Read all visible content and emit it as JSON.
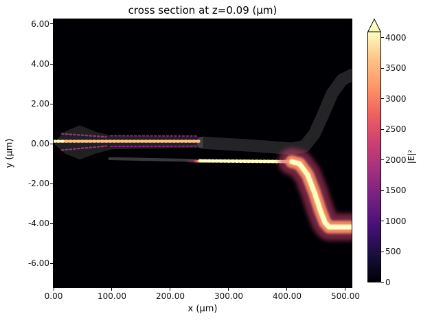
{
  "chart_data": {
    "type": "heatmap",
    "title": "cross section at z=0.09 (μm)",
    "xlabel": "x (μm)",
    "ylabel": "y (μm)",
    "xlim": [
      0,
      510.6
    ],
    "ylim": [
      -7.2,
      6.24
    ],
    "x_ticks": [
      0,
      100,
      200,
      300,
      400,
      500
    ],
    "x_tick_labels": [
      "0.00",
      "100.00",
      "200.00",
      "300.00",
      "400.00",
      "500.00"
    ],
    "y_ticks": [
      6,
      4,
      2,
      0,
      -2,
      -4,
      -6
    ],
    "y_tick_labels": [
      "6.00",
      "4.00",
      "2.00",
      "0.00",
      "-2.00",
      "-4.00",
      "-6.00"
    ],
    "background": "#000004",
    "colormap": "magma",
    "colorbar": {
      "label": "|E|²",
      "vmin": 0,
      "vmax": 4100,
      "extend": "max",
      "extend_color": "#fcfdbf",
      "ticks": [
        0,
        500,
        1000,
        1500,
        2000,
        2500,
        3000,
        3500,
        4000
      ],
      "tick_labels": [
        "0",
        "500",
        "1000",
        "1500",
        "2000",
        "2500",
        "3000",
        "3500",
        "4000"
      ],
      "stops": [
        {
          "pos": 0,
          "color": "#000004"
        },
        {
          "pos": 11,
          "color": "#180f3e"
        },
        {
          "pos": 22,
          "color": "#451077"
        },
        {
          "pos": 33,
          "color": "#721f81"
        },
        {
          "pos": 44,
          "color": "#9f2f7f"
        },
        {
          "pos": 56,
          "color": "#cd4071"
        },
        {
          "pos": 67,
          "color": "#f1605d"
        },
        {
          "pos": 78,
          "color": "#fd9567"
        },
        {
          "pos": 89,
          "color": "#fec287"
        },
        {
          "pos": 100,
          "color": "#fcfdbf"
        }
      ]
    },
    "structure": {
      "polygons": [
        {
          "name": "input-taper-outline",
          "alpha": 0.13,
          "points": [
            [
              2,
              0.12
            ],
            [
              20,
              0.62
            ],
            [
              45,
              0.92
            ],
            [
              72,
              0.6
            ],
            [
              100,
              0.4
            ],
            [
              256,
              0.34
            ],
            [
              256,
              -0.2
            ],
            [
              100,
              -0.28
            ],
            [
              72,
              -0.5
            ],
            [
              45,
              -0.8
            ],
            [
              20,
              -0.5
            ],
            [
              2,
              -0.05
            ]
          ]
        }
      ],
      "ribbons": [
        {
          "name": "upper-waveguide",
          "width_um": 0.62,
          "alpha": 0.14,
          "points": [
            [
              256,
              0.05
            ],
            [
              340,
              -0.1
            ],
            [
              408,
              -0.25
            ],
            [
              430,
              -0.12
            ],
            [
              447,
              0.5
            ],
            [
              461,
              1.4
            ],
            [
              477,
              2.5
            ],
            [
              494,
              3.2
            ],
            [
              511,
              3.45
            ]
          ]
        },
        {
          "name": "lower-waveguide",
          "width_um": 0.15,
          "alpha": 0.22,
          "points": [
            [
              96,
              -0.75
            ],
            [
              256,
              -0.85
            ]
          ]
        }
      ]
    },
    "field_traces": [
      {
        "name": "input-guide-field",
        "intensity": 2200,
        "width_um": 0.3,
        "points": [
          [
            0,
            0.12
          ],
          [
            250,
            0.12
          ]
        ],
        "glow": "#721f81",
        "glow_opacity": 0.55,
        "mid": "#cd4071",
        "core": "#f1605d",
        "dash": "#fec287"
      },
      {
        "name": "input-hotspot",
        "intensity": 3000,
        "width_um": 0.26,
        "points": [
          [
            0,
            0.12
          ],
          [
            16,
            0.12
          ]
        ],
        "core": "#fec287",
        "dash": "#fcfdbf"
      },
      {
        "name": "taper-fan-upper",
        "intensity": 1200,
        "width_um": 0.16,
        "points": [
          [
            14,
            0.5
          ],
          [
            90,
            0.34
          ]
        ],
        "dash": "#9f2f7f"
      },
      {
        "name": "taper-fan-lower",
        "intensity": 1200,
        "width_um": 0.16,
        "points": [
          [
            14,
            -0.32
          ],
          [
            90,
            -0.12
          ]
        ],
        "dash": "#9f2f7f"
      },
      {
        "name": "mode-beat-upper",
        "intensity": 900,
        "width_um": 0.13,
        "points": [
          [
            98,
            0.4
          ],
          [
            248,
            0.38
          ]
        ],
        "dash": "#8c2981"
      },
      {
        "name": "mode-beat-lower",
        "intensity": 900,
        "width_um": 0.13,
        "points": [
          [
            98,
            -0.14
          ],
          [
            248,
            -0.12
          ]
        ],
        "dash": "#8c2981"
      },
      {
        "name": "coupled-lower-guide-field",
        "intensity": 3300,
        "width_um": 0.34,
        "points": [
          [
            251,
            -0.86
          ],
          [
            408,
            -0.9
          ]
        ],
        "glow": "#9f2f7f",
        "glow_opacity": 0.5,
        "mid": "#f1605d",
        "core": "#fec287",
        "dash": "#fcfdbf"
      },
      {
        "name": "s-bend-output-field",
        "intensity": 4000,
        "width_um": 0.4,
        "points": [
          [
            408,
            -0.9
          ],
          [
            421,
            -1.0
          ],
          [
            435,
            -1.55
          ],
          [
            447,
            -2.45
          ],
          [
            457,
            -3.35
          ],
          [
            465,
            -3.95
          ],
          [
            472,
            -4.18
          ],
          [
            510,
            -4.18
          ]
        ],
        "glow": "#cd4071",
        "glow_opacity": 0.55,
        "mid": "#fd9567",
        "core": "#fcfdbf"
      }
    ]
  }
}
